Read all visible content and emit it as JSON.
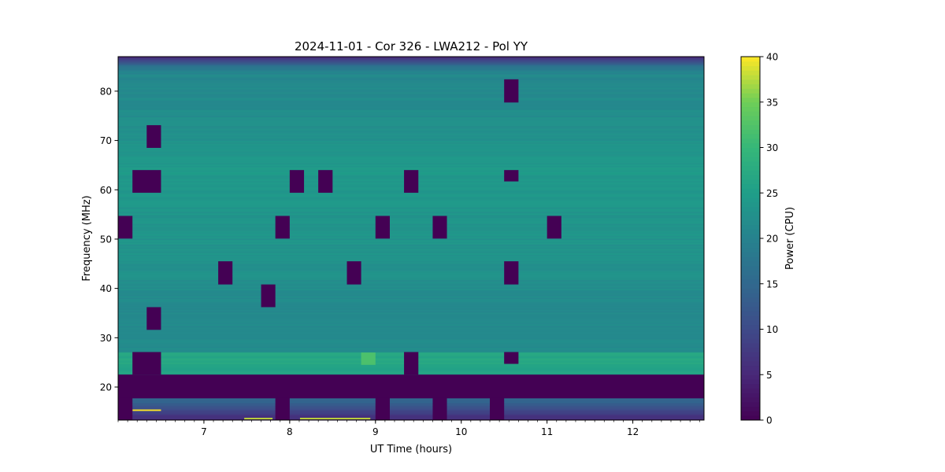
{
  "chart_data": {
    "type": "heatmap",
    "title": "2024-11-01 - Cor 326 - LWA212 - Pol YY",
    "xlabel": "UT Time (hours)",
    "ylabel": "Frequency (MHz)",
    "colorbar_label": "Power (CPU)",
    "colormap": "viridis",
    "xlim": [
      6.0,
      12.83
    ],
    "ylim": [
      13.3,
      87.0
    ],
    "clim": [
      0,
      40
    ],
    "x_ticks": [
      7,
      8,
      9,
      10,
      11,
      12
    ],
    "y_ticks": [
      20,
      30,
      40,
      50,
      60,
      70,
      80
    ],
    "colorbar_ticks": [
      0,
      5,
      10,
      15,
      20,
      25,
      30,
      35,
      40
    ],
    "time_bin_hours": 0.1667,
    "frequency_profile": [
      {
        "f": 13.3,
        "power": 5
      },
      {
        "f": 15.5,
        "power": 10
      },
      {
        "f": 17.8,
        "power": 16
      },
      {
        "f": 17.81,
        "power": 0
      },
      {
        "f": 22.49,
        "power": 0
      },
      {
        "f": 22.5,
        "power": 26
      },
      {
        "f": 27.0,
        "power": 27
      },
      {
        "f": 27.1,
        "power": 22
      },
      {
        "f": 35.0,
        "power": 21
      },
      {
        "f": 45.0,
        "power": 23
      },
      {
        "f": 55.0,
        "power": 23.5
      },
      {
        "f": 65.0,
        "power": 24
      },
      {
        "f": 75.0,
        "power": 22
      },
      {
        "f": 83.5,
        "power": 21
      },
      {
        "f": 85.0,
        "power": 18
      },
      {
        "f": 87.0,
        "power": 5
      }
    ],
    "masked_blocks": [
      {
        "t": [
          6.0,
          6.167
        ],
        "f": [
          13.3,
          22.5
        ]
      },
      {
        "t": [
          6.0,
          6.167
        ],
        "f": [
          50.1,
          54.7
        ]
      },
      {
        "t": [
          6.167,
          6.5
        ],
        "f": [
          59.4,
          64.0
        ]
      },
      {
        "t": [
          6.167,
          6.5
        ],
        "f": [
          22.5,
          27.1
        ]
      },
      {
        "t": [
          6.333,
          6.5
        ],
        "f": [
          68.5,
          73.1
        ]
      },
      {
        "t": [
          6.333,
          6.5
        ],
        "f": [
          31.6,
          36.2
        ]
      },
      {
        "t": [
          7.167,
          7.333
        ],
        "f": [
          40.8,
          45.5
        ]
      },
      {
        "t": [
          7.667,
          7.833
        ],
        "f": [
          36.2,
          40.8
        ]
      },
      {
        "t": [
          7.833,
          8.0
        ],
        "f": [
          50.1,
          54.7
        ]
      },
      {
        "t": [
          7.833,
          8.0
        ],
        "f": [
          13.3,
          17.8
        ]
      },
      {
        "t": [
          8.0,
          8.167
        ],
        "f": [
          59.4,
          64.0
        ]
      },
      {
        "t": [
          8.333,
          8.5
        ],
        "f": [
          59.4,
          64.0
        ]
      },
      {
        "t": [
          8.667,
          8.833
        ],
        "f": [
          40.8,
          45.5
        ]
      },
      {
        "t": [
          9.0,
          9.167
        ],
        "f": [
          50.1,
          54.7
        ]
      },
      {
        "t": [
          9.0,
          9.167
        ],
        "f": [
          13.3,
          17.8
        ]
      },
      {
        "t": [
          9.333,
          9.5
        ],
        "f": [
          59.4,
          64.0
        ]
      },
      {
        "t": [
          9.333,
          9.5
        ],
        "f": [
          22.5,
          27.1
        ]
      },
      {
        "t": [
          9.667,
          9.833
        ],
        "f": [
          50.1,
          54.7
        ]
      },
      {
        "t": [
          9.667,
          9.833
        ],
        "f": [
          13.3,
          17.8
        ]
      },
      {
        "t": [
          10.333,
          10.5
        ],
        "f": [
          13.3,
          17.8
        ]
      },
      {
        "t": [
          10.5,
          10.667
        ],
        "f": [
          77.7,
          82.4
        ]
      },
      {
        "t": [
          10.5,
          10.667
        ],
        "f": [
          61.7,
          64.0
        ]
      },
      {
        "t": [
          10.5,
          10.667
        ],
        "f": [
          40.8,
          45.5
        ]
      },
      {
        "t": [
          10.5,
          10.667
        ],
        "f": [
          24.7,
          27.1
        ]
      },
      {
        "t": [
          11.0,
          11.167
        ],
        "f": [
          50.1,
          54.7
        ]
      },
      {
        "t": [
          6.0,
          12.83
        ],
        "f": [
          17.8,
          22.5
        ]
      }
    ],
    "bright_features": [
      {
        "t": [
          6.167,
          6.5
        ],
        "f": 15.3,
        "power": 40
      },
      {
        "t": [
          7.47,
          7.8
        ],
        "f": 13.6,
        "power": 38
      },
      {
        "t": [
          8.12,
          8.94
        ],
        "f": 13.6,
        "power": 38
      },
      {
        "t": [
          8.833,
          9.0
        ],
        "f": [
          24.5,
          27.0
        ],
        "power": 32
      }
    ]
  }
}
